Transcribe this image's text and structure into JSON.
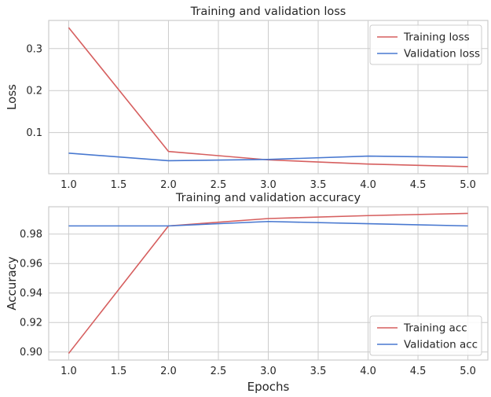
{
  "chart_data": [
    {
      "type": "line",
      "title": "Training and validation loss",
      "xlabel": "",
      "ylabel": "Loss",
      "x": [
        1.0,
        2.0,
        3.0,
        4.0,
        5.0
      ],
      "xlim": [
        0.8,
        5.2
      ],
      "ylim": [
        0.002,
        0.367
      ],
      "xticks": [
        1.0,
        1.5,
        2.0,
        2.5,
        3.0,
        3.5,
        4.0,
        4.5,
        5.0
      ],
      "xtick_labels": [
        "1.0",
        "1.5",
        "2.0",
        "2.5",
        "3.0",
        "3.5",
        "4.0",
        "4.5",
        "5.0"
      ],
      "yticks": [
        0.1,
        0.2,
        0.3
      ],
      "ytick_labels": [
        "0.1",
        "0.2",
        "0.3"
      ],
      "grid": true,
      "legend": "top-right",
      "series": [
        {
          "name": "Training loss",
          "color": "#d65f5f",
          "values": [
            0.35,
            0.055,
            0.035,
            0.025,
            0.019
          ]
        },
        {
          "name": "Validation loss",
          "color": "#4878d0",
          "values": [
            0.051,
            0.033,
            0.036,
            0.044,
            0.041
          ]
        }
      ]
    },
    {
      "type": "line",
      "title": "Training and validation accuracy",
      "xlabel": "Epochs",
      "ylabel": "Accuracy",
      "x": [
        1.0,
        2.0,
        3.0,
        4.0,
        5.0
      ],
      "xlim": [
        0.8,
        5.2
      ],
      "ylim": [
        0.8945,
        0.9985
      ],
      "xticks": [
        1.0,
        1.5,
        2.0,
        2.5,
        3.0,
        3.5,
        4.0,
        4.5,
        5.0
      ],
      "xtick_labels": [
        "1.0",
        "1.5",
        "2.0",
        "2.5",
        "3.0",
        "3.5",
        "4.0",
        "4.5",
        "5.0"
      ],
      "yticks": [
        0.9,
        0.92,
        0.94,
        0.96,
        0.98
      ],
      "ytick_labels": [
        "0.90",
        "0.92",
        "0.94",
        "0.96",
        "0.98"
      ],
      "grid": true,
      "legend": "bottom-right",
      "series": [
        {
          "name": "Training acc",
          "color": "#d65f5f",
          "values": [
            0.899,
            0.9855,
            0.9905,
            0.9925,
            0.994
          ]
        },
        {
          "name": "Validation acc",
          "color": "#4878d0",
          "values": [
            0.9855,
            0.9855,
            0.9885,
            0.987,
            0.9855
          ]
        }
      ]
    }
  ]
}
